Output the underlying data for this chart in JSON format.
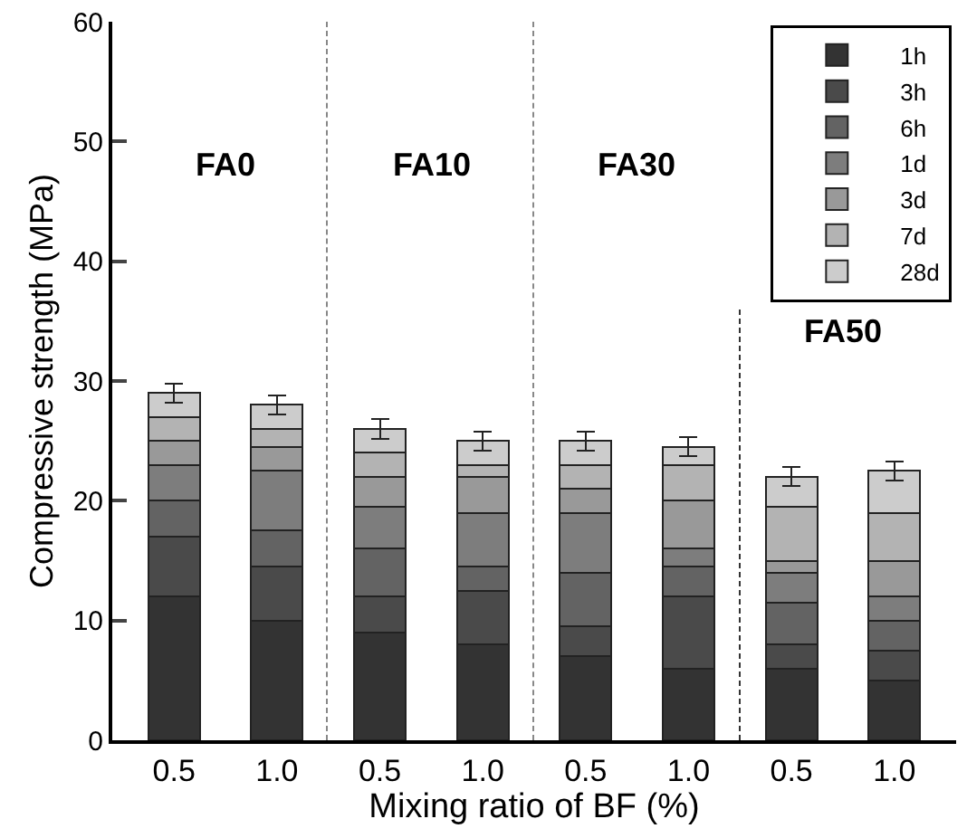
{
  "chart_data": {
    "type": "bar",
    "stacked": true,
    "xlabel": "Mixing ratio of BF (%)",
    "ylabel": "Compressive strength (MPa)",
    "categories": [
      "0.5",
      "1.0",
      "0.5",
      "1.0",
      "0.5",
      "1.0",
      "0.5",
      "1.0"
    ],
    "series": [
      {
        "name": "1h",
        "color": "#333333",
        "values": [
          12,
          10,
          9,
          8,
          7,
          6,
          6,
          5
        ]
      },
      {
        "name": "3h",
        "color": "#4a4a4a",
        "values": [
          5,
          4.5,
          3,
          4.5,
          2.5,
          6,
          2,
          2.5
        ]
      },
      {
        "name": "6h",
        "color": "#636363",
        "values": [
          3,
          3,
          4,
          2,
          4.5,
          2.5,
          3.5,
          2.5
        ]
      },
      {
        "name": "1d",
        "color": "#7d7d7d",
        "values": [
          3,
          5,
          3.5,
          4.5,
          5,
          1.5,
          2.5,
          2
        ]
      },
      {
        "name": "3d",
        "color": "#999999",
        "values": [
          2,
          2,
          2.5,
          3,
          2,
          4,
          1,
          3
        ]
      },
      {
        "name": "7d",
        "color": "#b3b3b3",
        "values": [
          2,
          1.5,
          2,
          1,
          2,
          3,
          4.5,
          4
        ]
      },
      {
        "name": "28d",
        "color": "#cccccc",
        "values": [
          2,
          2,
          2,
          2,
          2,
          1.5,
          2.5,
          3.5
        ],
        "errors": [
          0.8,
          0.8,
          0.8,
          0.8,
          0.8,
          0.8,
          0.8,
          0.8
        ]
      }
    ],
    "ylim": [
      0,
      60
    ],
    "yticks": [
      0,
      10,
      20,
      30,
      40,
      50,
      60
    ],
    "grid": false,
    "legend": "top right",
    "annotations": [
      "FA0",
      "FA10",
      "FA30",
      "FA50"
    ]
  }
}
